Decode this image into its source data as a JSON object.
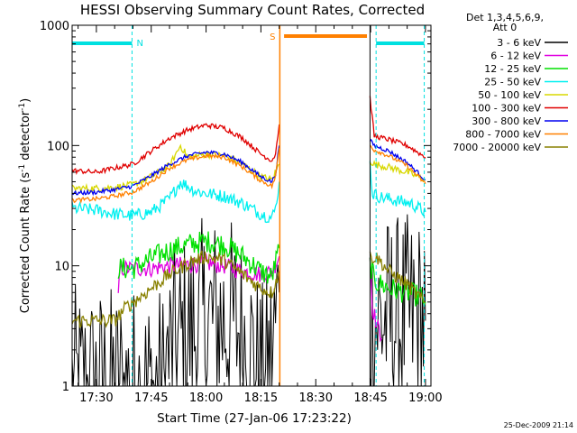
{
  "chart_data": {
    "type": "line",
    "title": "HESSI Observing Summary Count Rates, Corrected",
    "xlabel": "Start Time (27-Jan-06 17:23:22)",
    "ylabel": "Corrected Count Rate (s⁻¹ detector⁻¹)",
    "ylabel_parts": {
      "main": "Corrected Count Rate (s",
      "exp1": "-1",
      "mid": " detector",
      "exp2": "-1",
      "end": ")"
    },
    "y_scale": "log",
    "ylim": [
      1,
      1000
    ],
    "xlim": [
      "17:23:22",
      "19:01:30"
    ],
    "x_ticks": [
      "17:30",
      "17:45",
      "18:00",
      "18:15",
      "18:30",
      "18:45",
      "19:00"
    ],
    "y_ticks": [
      "1",
      "10",
      "100",
      "1000"
    ],
    "legend_header": [
      "Det 1,3,4,5,6,9,",
      "Att 0"
    ],
    "legend_placement": "right",
    "timestamp": "25-Dec-2009 21:14",
    "flag_labels": {
      "night": "N",
      "saa": "S"
    },
    "markers": {
      "night_start": "17:39:45",
      "night_end": "18:46:30",
      "night_end2": "18:59:40",
      "saa_start": "18:21:20",
      "saa_end": "18:44:00",
      "data_gap_start": "18:20:10",
      "data_gap_end": "18:44:50"
    },
    "flag_bars": {
      "night": [
        [
          "17:23:22",
          "17:39:45"
        ],
        [
          "18:46:30",
          "18:59:40"
        ]
      ],
      "saa": [
        [
          "18:21:20",
          "18:44:00"
        ]
      ]
    },
    "series": [
      {
        "name": "3 - 6 keV",
        "color": "#000000",
        "segments": [
          [
            [
              "17:23:22",
              0.9
            ],
            [
              "17:48:30",
              0.9
            ],
            [
              "17:49:30",
              1.7
            ],
            [
              "17:52",
              2.0
            ],
            [
              "17:55",
              2.6
            ],
            [
              "17:58",
              3.0
            ],
            [
              "18:00",
              3.4
            ],
            [
              "18:03",
              3.5
            ],
            [
              "18:06",
              3.4
            ],
            [
              "18:09",
              3.0
            ],
            [
              "18:12",
              2.0
            ],
            [
              "18:14",
              1.2
            ],
            [
              "18:16",
              0.9
            ],
            [
              "18:18",
              1.8
            ],
            [
              "18:19",
              3.0
            ],
            [
              "18:20",
              6.0
            ]
          ],
          [
            [
              "18:44:50",
              3.0
            ],
            [
              "18:46",
              3.5
            ],
            [
              "18:49",
              3.5
            ],
            [
              "18:53",
              3.5
            ],
            [
              "19:00",
              3.5
            ]
          ]
        ]
      },
      {
        "name": "6 - 12 keV",
        "color": "#e000e0",
        "segments": [
          [
            [
              "17:36",
              5.5
            ],
            [
              "17:36:30",
              9.5
            ],
            [
              "17:40",
              9.5
            ],
            [
              "17:45",
              9.5
            ],
            [
              "17:50",
              10.0
            ],
            [
              "17:55",
              10.2
            ],
            [
              "18:00",
              10.5
            ],
            [
              "18:05",
              10.0
            ],
            [
              "18:10",
              9.0
            ],
            [
              "18:15",
              8.5
            ],
            [
              "18:18",
              9.0
            ],
            [
              "18:20",
              12.0
            ]
          ],
          [
            [
              "18:44:50",
              12.0
            ],
            [
              "18:45:30",
              4.5
            ],
            [
              "18:47",
              3.0
            ],
            [
              "18:48",
              2.5
            ]
          ]
        ]
      },
      {
        "name": "12 - 25 keV",
        "color": "#00e000",
        "segments": [
          [
            [
              "17:36",
              9.5
            ],
            [
              "17:40",
              9.5
            ],
            [
              "17:45",
              11.5
            ],
            [
              "17:50",
              13.5
            ],
            [
              "17:55",
              15.0
            ],
            [
              "18:00",
              16.0
            ],
            [
              "18:05",
              15.0
            ],
            [
              "18:10",
              12.0
            ],
            [
              "18:15",
              9.0
            ],
            [
              "18:18",
              8.0
            ],
            [
              "18:20",
              14.0
            ]
          ],
          [
            [
              "18:44:50",
              10.5
            ],
            [
              "18:46",
              7.5
            ],
            [
              "18:50",
              6.5
            ],
            [
              "18:55",
              6.0
            ],
            [
              "18:59",
              5.5
            ],
            [
              "19:00",
              5.0
            ]
          ]
        ]
      },
      {
        "name": "25 - 50 keV",
        "color": "#00f0f0",
        "segments": [
          [
            [
              "17:23:22",
              30.0
            ],
            [
              "17:30",
              29.0
            ],
            [
              "17:35",
              27.0
            ],
            [
              "17:40",
              26.0
            ],
            [
              "17:45",
              28.0
            ],
            [
              "17:50",
              36.0
            ],
            [
              "17:53",
              50.0
            ],
            [
              "17:57",
              42.0
            ],
            [
              "18:00",
              40.0
            ],
            [
              "18:05",
              38.0
            ],
            [
              "18:10",
              33.0
            ],
            [
              "18:15",
              27.0
            ],
            [
              "18:18",
              25.0
            ],
            [
              "18:19",
              30.0
            ],
            [
              "18:20",
              50.0
            ]
          ],
          [
            [
              "18:44:50",
              70.0
            ],
            [
              "18:45:30",
              40.0
            ],
            [
              "18:48",
              37.0
            ],
            [
              "18:52",
              35.0
            ],
            [
              "18:56",
              33.0
            ],
            [
              "19:00",
              28.0
            ]
          ]
        ]
      },
      {
        "name": "50 - 100 keV",
        "color": "#d8d800",
        "segments": [
          [
            [
              "17:23:22",
              44.0
            ],
            [
              "17:30",
              44.0
            ],
            [
              "17:35",
              45.0
            ],
            [
              "17:40",
              47.0
            ],
            [
              "17:45",
              55.0
            ],
            [
              "17:50",
              68.0
            ],
            [
              "17:53",
              100.0
            ],
            [
              "17:55",
              80.0
            ],
            [
              "18:00",
              85.0
            ],
            [
              "18:05",
              82.0
            ],
            [
              "18:10",
              70.0
            ],
            [
              "18:15",
              55.0
            ],
            [
              "18:18",
              52.0
            ],
            [
              "18:20",
              70.0
            ]
          ],
          [
            [
              "18:44:50",
              75.0
            ],
            [
              "18:46",
              70.0
            ],
            [
              "18:50",
              66.0
            ],
            [
              "18:55",
              60.0
            ],
            [
              "19:00",
              52.0
            ]
          ]
        ]
      },
      {
        "name": "100 - 300 keV",
        "color": "#e00000",
        "segments": [
          [
            [
              "17:23:22",
              62.0
            ],
            [
              "17:30",
              60.0
            ],
            [
              "17:35",
              65.0
            ],
            [
              "17:40",
              70.0
            ],
            [
              "17:45",
              90.0
            ],
            [
              "17:50",
              115.0
            ],
            [
              "17:55",
              135.0
            ],
            [
              "18:00",
              148.0
            ],
            [
              "18:05",
              140.0
            ],
            [
              "18:10",
              115.0
            ],
            [
              "18:15",
              85.0
            ],
            [
              "18:18",
              75.0
            ],
            [
              "18:19",
              85.0
            ],
            [
              "18:20",
              150.0
            ]
          ],
          [
            [
              "18:44:50",
              250.0
            ],
            [
              "18:46",
              120.0
            ],
            [
              "18:50",
              112.0
            ],
            [
              "18:55",
              100.0
            ],
            [
              "19:00",
              80.0
            ]
          ]
        ]
      },
      {
        "name": "300 - 800 keV",
        "color": "#0000f0",
        "segments": [
          [
            [
              "17:23:22",
              40.0
            ],
            [
              "17:30",
              41.0
            ],
            [
              "17:35",
              43.0
            ],
            [
              "17:40",
              46.0
            ],
            [
              "17:45",
              56.0
            ],
            [
              "17:50",
              70.0
            ],
            [
              "17:55",
              82.0
            ],
            [
              "18:00",
              88.0
            ],
            [
              "18:05",
              85.0
            ],
            [
              "18:10",
              72.0
            ],
            [
              "18:15",
              55.0
            ],
            [
              "18:18",
              50.0
            ],
            [
              "18:19",
              58.0
            ],
            [
              "18:20",
              100.0
            ]
          ],
          [
            [
              "18:44:50",
              110.0
            ],
            [
              "18:46",
              100.0
            ],
            [
              "18:50",
              90.0
            ],
            [
              "18:55",
              72.0
            ],
            [
              "19:00",
              52.0
            ]
          ]
        ]
      },
      {
        "name": "800 - 7000 keV",
        "color": "#ff8000",
        "segments": [
          [
            [
              "17:23:22",
              35.0
            ],
            [
              "17:30",
              36.0
            ],
            [
              "17:35",
              38.0
            ],
            [
              "17:40",
              41.0
            ],
            [
              "17:45",
              50.0
            ],
            [
              "17:50",
              65.0
            ],
            [
              "17:55",
              76.0
            ],
            [
              "18:00",
              82.0
            ],
            [
              "18:05",
              80.0
            ],
            [
              "18:10",
              66.0
            ],
            [
              "18:15",
              51.0
            ],
            [
              "18:18",
              46.0
            ],
            [
              "18:19",
              55.0
            ],
            [
              "18:20",
              95.0
            ]
          ],
          [
            [
              "18:44:50",
              100.0
            ],
            [
              "18:46",
              92.0
            ],
            [
              "18:50",
              82.0
            ],
            [
              "18:55",
              68.0
            ],
            [
              "19:00",
              48.0
            ]
          ]
        ]
      },
      {
        "name": "7000 - 20000 keV",
        "color": "#888000",
        "segments": [
          [
            [
              "17:23:22",
              3.5
            ],
            [
              "17:30",
              3.5
            ],
            [
              "17:35",
              3.5
            ],
            [
              "17:38",
              4.5
            ],
            [
              "17:42",
              5.5
            ],
            [
              "17:45",
              6.5
            ],
            [
              "17:50",
              8.5
            ],
            [
              "17:55",
              10.5
            ],
            [
              "18:00",
              12.0
            ],
            [
              "18:05",
              11.0
            ],
            [
              "18:10",
              8.5
            ],
            [
              "18:15",
              6.5
            ],
            [
              "18:18",
              6.0
            ],
            [
              "18:20",
              9.0
            ]
          ],
          [
            [
              "18:44:50",
              12.0
            ],
            [
              "18:47",
              11.5
            ],
            [
              "18:50",
              9.0
            ],
            [
              "18:55",
              7.0
            ],
            [
              "19:00",
              4.8
            ]
          ]
        ]
      }
    ]
  }
}
